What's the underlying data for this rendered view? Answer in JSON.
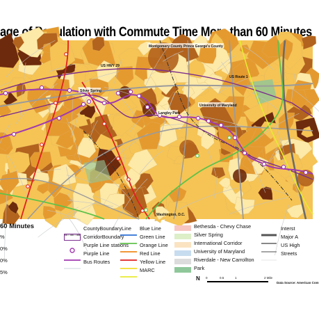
{
  "title": "age of Population with Commute Time More than 60 Minutes",
  "map_labels": {
    "montgomery": "Montgomery County",
    "prince_georges": "Prince George's County",
    "us29": "US HWY 29",
    "us1": "US Route 1",
    "silver_spring": "Silver Spring",
    "langley_park": "Langley Park",
    "umd": "University of Maryland",
    "washington": "Washington, D.C."
  },
  "legend": {
    "heading": "60 Minutes",
    "class_labels": [
      "%",
      "0%",
      "0%",
      "5%"
    ],
    "col1": [
      {
        "label": "CountyBoundaryLine",
        "symbol": "dashdot",
        "color": "#333333"
      },
      {
        "label": "CorridorBoundary",
        "symbol": "box",
        "color": "#7b2d8e"
      },
      {
        "label": "Purple Line stations",
        "symbol": "circle",
        "color": "#a13ab0"
      },
      {
        "label": "Purple Line",
        "symbol": "line",
        "color": "#a13ab0"
      },
      {
        "label": "Bus Routes",
        "symbol": "thin",
        "color": "#9aaac0"
      }
    ],
    "col2": [
      {
        "label": "Blue Line",
        "color": "#2b6fd6"
      },
      {
        "label": "Green Line",
        "color": "#5fc24a"
      },
      {
        "label": "Orange Line",
        "color": "#f08a1c"
      },
      {
        "label": "Red Line",
        "color": "#e02020"
      },
      {
        "label": "Yellow Line",
        "color": "#f2de2a"
      },
      {
        "label": "MARC",
        "color": "#e7ea30"
      }
    ],
    "col3": [
      {
        "label": "Bethesda - Chevy Chase",
        "color": "#f7c6c0"
      },
      {
        "label": "Silver Spring",
        "color": "#dcefc7"
      },
      {
        "label": "International Corridor",
        "color": "#fbe3c2"
      },
      {
        "label": "University of Maryland",
        "color": "#c7dcef"
      },
      {
        "label": "Riverdale - New Carrollton",
        "color": "#dcdcdc"
      },
      {
        "label": "Park",
        "color": "#8fc79a"
      }
    ],
    "col4": [
      {
        "label": "Interst",
        "color": "#555555",
        "width": 3
      },
      {
        "label": "Major A",
        "color": "#888888",
        "width": 2
      },
      {
        "label": "US High",
        "color": "#888888",
        "width": 1.5
      },
      {
        "label": "Streets",
        "color": "#cccccc",
        "width": 0.6
      }
    ],
    "scale": {
      "ticks": [
        "0",
        "0.5",
        "1",
        "2 Mile"
      ],
      "north": "N"
    },
    "source": "Data Source: American Com"
  },
  "colors": {
    "choropleth": [
      "#fde9a8",
      "#f6c454",
      "#e59a2f",
      "#b2631d",
      "#6e2a0c"
    ],
    "purple": "#a13ab0",
    "corridor": "#7b2d8e"
  }
}
